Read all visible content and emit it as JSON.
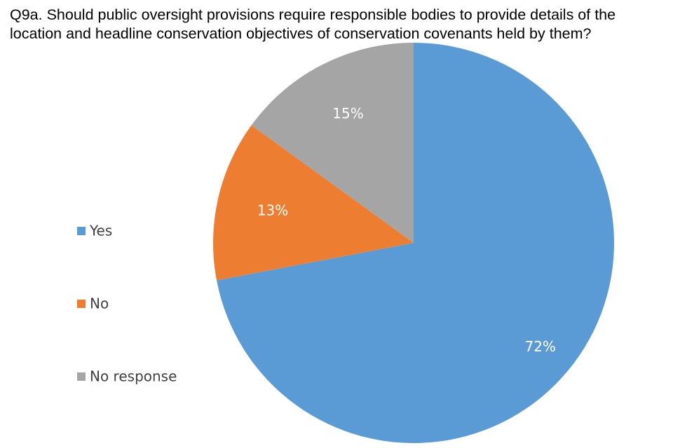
{
  "chart_data": {
    "type": "pie",
    "title": "Q9a. Should public oversight provisions require responsible bodies to provide details of the location and headline conservation objectives of conservation covenants held by them?",
    "categories": [
      "Yes",
      "No",
      "No response"
    ],
    "values": [
      72,
      13,
      15
    ],
    "value_labels": [
      "72%",
      "13%",
      "15%"
    ],
    "colors": [
      "#5b9bd5",
      "#ed7d31",
      "#a5a5a5"
    ],
    "legend": "left"
  }
}
